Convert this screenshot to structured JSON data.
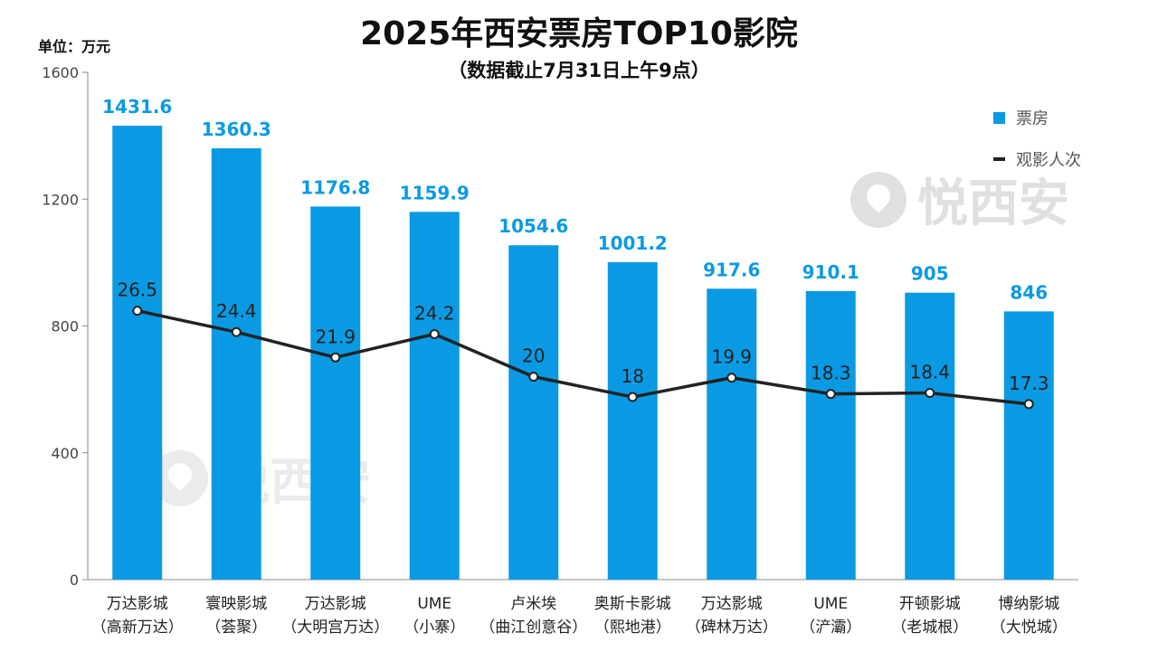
{
  "chart_data": {
    "type": "bar",
    "title": "2025年西安票房TOP10影院",
    "subtitle": "（数据截止7月31日上午9点）",
    "unit_label": "单位：万元",
    "categories": [
      [
        "万达影城",
        "（高新万达）"
      ],
      [
        "寰映影城",
        "（荟聚）"
      ],
      [
        "万达影城",
        "（大明宫万达）"
      ],
      [
        "UME",
        "（小寨）"
      ],
      [
        "卢米埃",
        "（曲江创意谷）"
      ],
      [
        "奥斯卡影城",
        "（熙地港）"
      ],
      [
        "万达影城",
        "（碑林万达）"
      ],
      [
        "UME",
        "（浐灞）"
      ],
      [
        "开顿影城",
        "（老城根）"
      ],
      [
        "博纳影城",
        "（大悦城）"
      ]
    ],
    "series": [
      {
        "name": "票房",
        "type": "bar",
        "color": "#0a9ae3",
        "values": [
          1431.6,
          1360.3,
          1176.8,
          1159.9,
          1054.6,
          1001.2,
          917.6,
          910.1,
          905,
          846
        ],
        "labels": [
          "1431.6",
          "1360.3",
          "1176.8",
          "1159.9",
          "1054.6",
          "1001.2",
          "917.6",
          "910.1",
          "905",
          "846"
        ]
      },
      {
        "name": "观影人次",
        "type": "line",
        "color": "#222222",
        "values": [
          26.5,
          24.4,
          21.9,
          24.2,
          20,
          18,
          19.9,
          18.3,
          18.4,
          17.3
        ],
        "labels": [
          "26.5",
          "24.4",
          "21.9",
          "24.2",
          "20",
          "18",
          "19.9",
          "18.3",
          "18.4",
          "17.3"
        ]
      }
    ],
    "ylim": [
      0,
      1600
    ],
    "yticks": [
      0,
      400,
      800,
      1200,
      1600
    ],
    "ytick_labels": [
      "0",
      "400",
      "800",
      "1200",
      "1600"
    ],
    "legend": "top-right"
  },
  "watermark": "悦西安"
}
